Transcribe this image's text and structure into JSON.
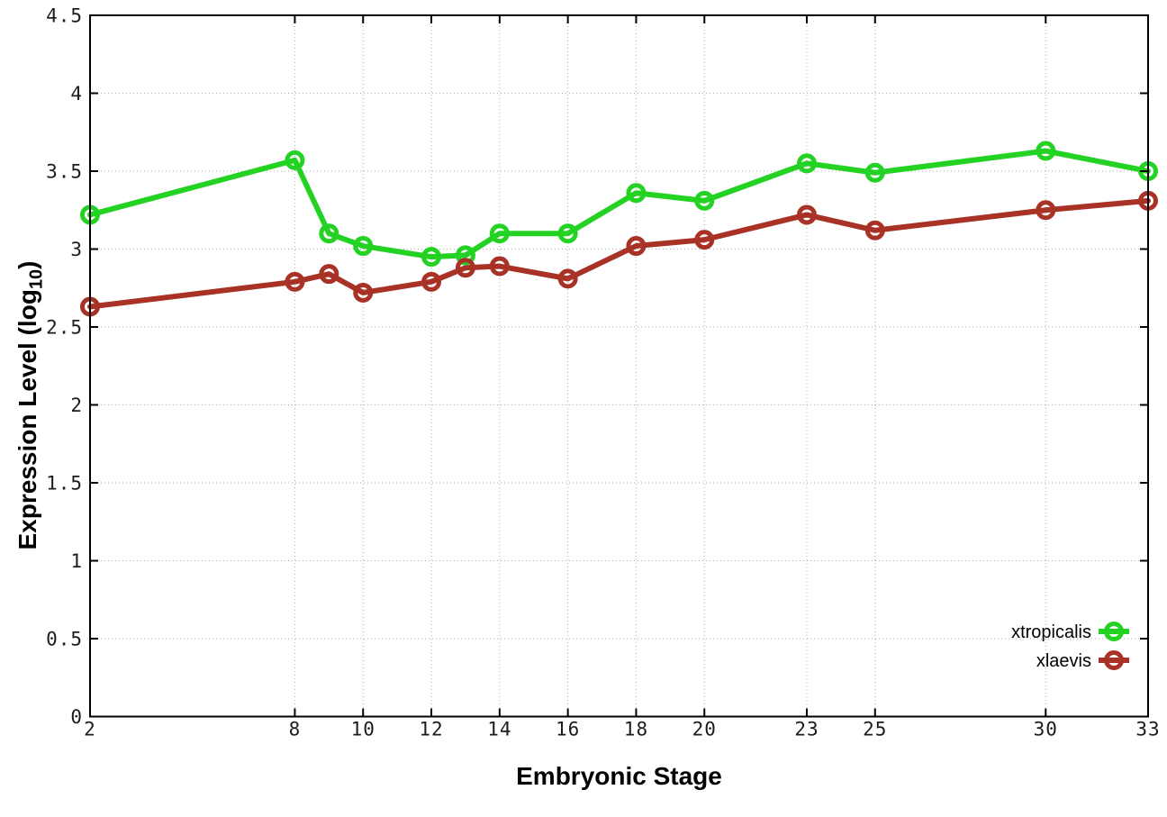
{
  "chart_data": {
    "type": "line",
    "title": "",
    "xlabel": "Embryonic Stage",
    "ylabel": "Expression Level (log10)",
    "ylabel_parts": [
      "Expression Level (log",
      "10",
      ")"
    ],
    "x": [
      2,
      8,
      9,
      10,
      12,
      13,
      14,
      16,
      18,
      20,
      23,
      25,
      30,
      33
    ],
    "series": [
      {
        "name": "xtropicalis",
        "color": "#24d224",
        "values": [
          3.22,
          3.57,
          3.1,
          3.02,
          2.95,
          2.96,
          3.1,
          3.1,
          3.36,
          3.31,
          3.55,
          3.49,
          3.63,
          3.5
        ]
      },
      {
        "name": "xlaevis",
        "color": "#a93226",
        "values": [
          2.63,
          2.79,
          2.84,
          2.72,
          2.79,
          2.88,
          2.89,
          2.81,
          3.02,
          3.06,
          3.22,
          3.12,
          3.25,
          3.31
        ]
      }
    ],
    "xlim": [
      2,
      33
    ],
    "ylim": [
      0,
      4.5
    ],
    "xticks": [
      2,
      8,
      10,
      12,
      14,
      16,
      18,
      20,
      23,
      25,
      30,
      33
    ],
    "yticks": [
      "0",
      "0.5",
      "1",
      "1.5",
      "2",
      "2.5",
      "3",
      "3.5",
      "4",
      "4.5"
    ],
    "grid": true,
    "legend_position": "bottom-right",
    "marker": "open-circle"
  },
  "styles": {
    "background": "#ffffff",
    "grid_color": "#a9a9a9",
    "border_color": "#000000",
    "tick_label_color": "#1c1c1c"
  }
}
